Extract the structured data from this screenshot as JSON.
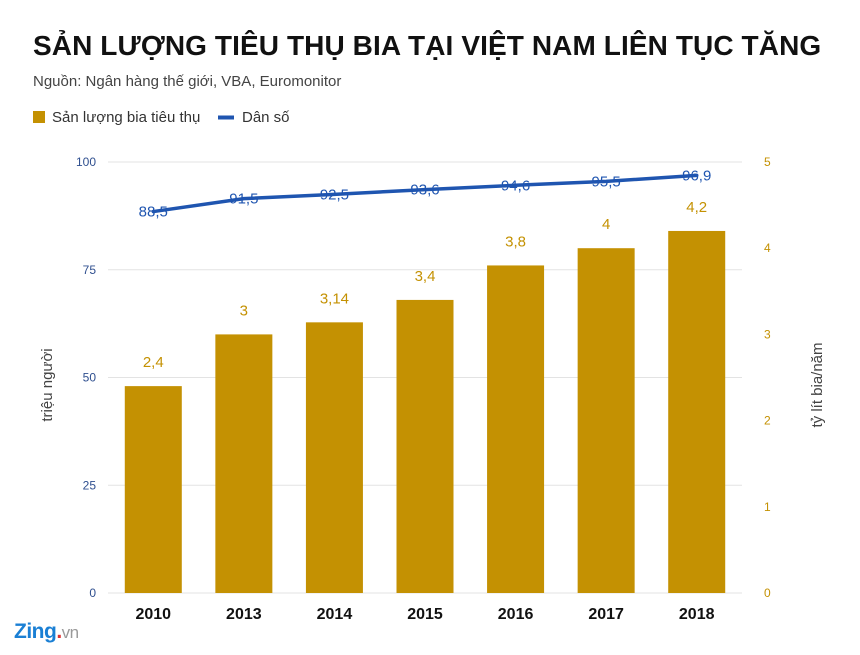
{
  "colors": {
    "bar": "#c49102",
    "line": "#1f55b0",
    "left_axis_text": "#2f4f8f",
    "right_axis_text": "#c49102",
    "grid": "#e3e3e3",
    "axis_title": "#444444"
  },
  "brand": {
    "main": "Zing",
    "dot": ".",
    "tld": "vn"
  },
  "chart_data": {
    "type": "bar",
    "title": "SẢN LƯỢNG TIÊU THỤ BIA TẠI VIỆT NAM LIÊN TỤC TĂNG",
    "subtitle": "Nguồn: Ngân hàng thế giới, VBA, Euromonitor",
    "categories": [
      "2010",
      "2013",
      "2014",
      "2015",
      "2016",
      "2017",
      "2018"
    ],
    "series": [
      {
        "name": "Sản lượng bia tiêu thụ",
        "type": "bar",
        "axis": "right",
        "values": [
          2.4,
          3,
          3.14,
          3.4,
          3.8,
          4,
          4.2
        ],
        "labels": [
          "2,4",
          "3",
          "3,14",
          "3,4",
          "3,8",
          "4",
          "4,2"
        ]
      },
      {
        "name": "Dân số",
        "type": "line",
        "axis": "left",
        "values": [
          88.5,
          91.5,
          92.5,
          93.6,
          94.6,
          95.5,
          96.9
        ],
        "labels": [
          "88,5",
          "91,5",
          "92,5",
          "93,6",
          "94,6",
          "95,5",
          "96,9"
        ]
      }
    ],
    "ylabel": "triệu người",
    "ylim": [
      0,
      100
    ],
    "yticks": [
      "0",
      "25",
      "50",
      "75",
      "100"
    ],
    "y2label": "tỷ lít bia/năm",
    "y2lim": [
      0,
      5
    ],
    "y2ticks": [
      "0",
      "1",
      "2",
      "3",
      "4",
      "5"
    ],
    "grid": true,
    "legend": "top-left"
  }
}
